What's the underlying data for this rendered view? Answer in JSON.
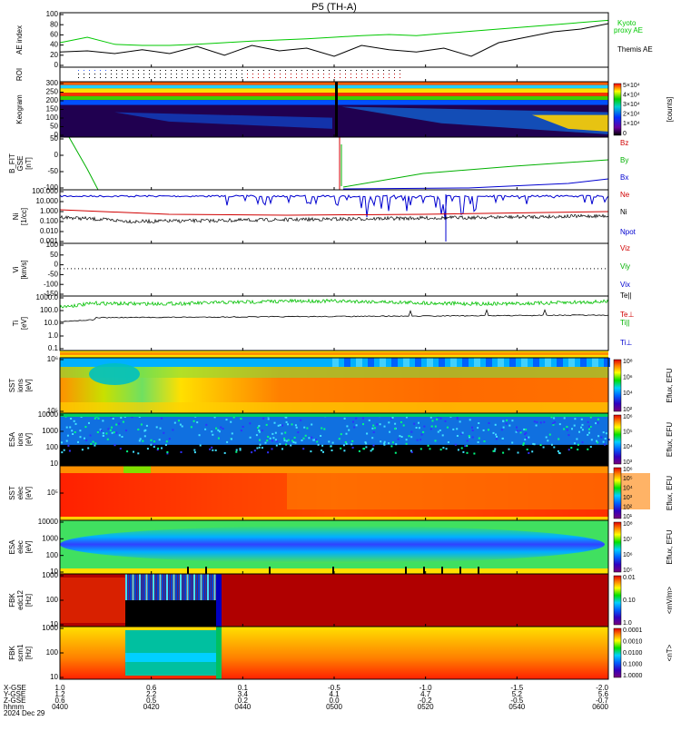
{
  "title": "P5 (TH-A)",
  "chart_data": [
    {
      "type": "line",
      "panel": "AE index",
      "ylabel": "AE index",
      "ylim": [
        0,
        100
      ],
      "yticks": [
        "0",
        "20",
        "40",
        "60",
        "80",
        "100"
      ],
      "x": [
        0.0,
        0.05,
        0.1,
        0.15,
        0.2,
        0.25,
        0.3,
        0.35,
        0.4,
        0.45,
        0.5,
        0.55,
        0.6,
        0.65,
        0.7,
        0.75,
        0.8,
        0.85,
        0.9,
        0.95,
        1.0
      ],
      "series": [
        {
          "name": "Kyoto\nproxy AE",
          "color": "#00c800",
          "values": [
            45,
            55,
            42,
            40,
            40,
            42,
            45,
            48,
            50,
            52,
            55,
            58,
            60,
            58,
            62,
            66,
            70,
            74,
            78,
            82,
            86
          ]
        },
        {
          "name": "Themis AE",
          "color": "#000000",
          "values": [
            28,
            30,
            25,
            32,
            25,
            38,
            22,
            40,
            30,
            35,
            20,
            40,
            32,
            28,
            35,
            20,
            45,
            55,
            65,
            70,
            80
          ]
        }
      ]
    },
    {
      "type": "heatmap",
      "panel": "ROI",
      "ylabel": "ROI"
    },
    {
      "type": "heatmap",
      "panel": "Keogram",
      "ylabel": "Keogram",
      "yticks": [
        "0",
        "50",
        "100",
        "150",
        "200",
        "250",
        "300"
      ],
      "colorbar": {
        "label": "[counts]",
        "ticks": [
          "0",
          "1×10⁴",
          "2×10⁴",
          "3×10⁴",
          "4×10⁴",
          "5×10⁴"
        ]
      }
    },
    {
      "type": "line",
      "panel": "B FIT",
      "ylabel": "B_FIT\nGSE\n[nT]",
      "ylim": [
        -100,
        100
      ],
      "yticks": [
        "-100",
        "-50",
        "0",
        "50"
      ],
      "series": [
        {
          "name": "Bz",
          "color": "#d00000"
        },
        {
          "name": "By",
          "color": "#00b000"
        },
        {
          "name": "Bx",
          "color": "#0000d0"
        }
      ]
    },
    {
      "type": "line",
      "panel": "Ni",
      "ylabel": "Ni\n[1/cc]",
      "yticks": [
        "0.001",
        "0.010",
        "0.100",
        "1.000",
        "10.000",
        "100.000"
      ],
      "series": [
        {
          "name": "Ne",
          "color": "#d00000"
        },
        {
          "name": "Ni",
          "color": "#000000"
        },
        {
          "name": "Npot",
          "color": "#0000d0"
        }
      ]
    },
    {
      "type": "line",
      "panel": "Vi",
      "ylabel": "Vi\n[km/s]",
      "yticks": [
        "-150",
        "-100",
        "-50",
        "0",
        "50",
        "100"
      ],
      "series": [
        {
          "name": "Viz",
          "color": "#d00000"
        },
        {
          "name": "Viy",
          "color": "#00b000"
        },
        {
          "name": "Vix",
          "color": "#0000d0"
        }
      ]
    },
    {
      "type": "line",
      "panel": "Ti",
      "ylabel": "Ti\n[eV]",
      "yticks": [
        "0.1",
        "1.0",
        "10.0",
        "100.0",
        "1000.0"
      ],
      "series": [
        {
          "name": "Te||",
          "color": "#000000"
        },
        {
          "name": "Te⊥",
          "color": "#d00000"
        },
        {
          "name": "Ti||",
          "color": "#00b000"
        },
        {
          "name": "Ti⊥",
          "color": "#0000d0"
        }
      ]
    },
    {
      "type": "heatmap",
      "panel": "SST ions",
      "ylabel": "SST\nions\n[eV]",
      "yticks": [
        "10⁵",
        "10⁶"
      ],
      "colorbar": {
        "label": "Eflux, EFU",
        "ticks": [
          "10²",
          "10⁴",
          "10⁶",
          "10⁸"
        ]
      }
    },
    {
      "type": "heatmap",
      "panel": "ESA ions",
      "ylabel": "ESA\nions\n[eV]",
      "yticks": [
        "10",
        "100",
        "1000",
        "10000"
      ],
      "colorbar": {
        "label": "Eflux, EFU",
        "ticks": [
          "10³",
          "10⁴",
          "10⁵",
          "10⁶"
        ]
      }
    },
    {
      "type": "heatmap",
      "panel": "SST elec",
      "ylabel": "SST\nelec\n[eV]",
      "yticks": [
        "10⁵"
      ],
      "colorbar": {
        "label": "Eflux, EFU",
        "ticks": [
          "10¹",
          "10²",
          "10³",
          "10⁴",
          "10⁵",
          "10⁶"
        ]
      }
    },
    {
      "type": "heatmap",
      "panel": "ESA elec",
      "ylabel": "ESA\nelec\n[eV]",
      "yticks": [
        "10",
        "100",
        "1000",
        "10000"
      ],
      "colorbar": {
        "label": "Eflux, EFU",
        "ticks": [
          "10⁵",
          "10⁶",
          "10⁷",
          "10⁸"
        ]
      }
    },
    {
      "type": "heatmap",
      "panel": "FBK E",
      "ylabel": "FBK\nedc12\n[Hz]",
      "yticks": [
        "10",
        "100",
        "1000"
      ],
      "colorbar": {
        "label": "<mV/m>",
        "ticks": [
          "1.0",
          "0.10",
          "0.01"
        ]
      }
    },
    {
      "type": "heatmap",
      "panel": "FBK B",
      "ylabel": "FBK\nscm1\n[Hz]",
      "yticks": [
        "10",
        "100",
        "1000"
      ],
      "colorbar": {
        "label": "<nT>",
        "ticks": [
          "1.0000",
          "0.1000",
          "0.0100",
          "0.0010",
          "0.0001"
        ]
      }
    }
  ],
  "legend": {
    "ae_kyoto": "Kyoto\nproxy AE",
    "ae_themis": "Themis AE",
    "bz": "Bz",
    "by": "By",
    "bx": "Bx",
    "ne": "Ne",
    "ni": "Ni",
    "npot": "Npot",
    "viz": "Viz",
    "viy": "Viy",
    "vix": "Vix",
    "te_par": "Te||",
    "te_perp": "Te⊥",
    "ti_par": "Ti||",
    "ti_perp": "Ti⊥"
  },
  "xaxis": {
    "row_labels": [
      "X-GSE",
      "Y-GSE",
      "Z-GSE",
      "hhmm",
      "2024 Dec 29"
    ],
    "x_gse": [
      "1.0",
      "0.6",
      "0.1",
      "-0.5",
      "-1.0",
      "-1.5",
      "-2.0"
    ],
    "y_gse": [
      "1.2",
      "2.2",
      "3.4",
      "4.1",
      "4.7",
      "5.2",
      "5.6"
    ],
    "z_gse": [
      "0.6",
      "0.5",
      "0.2",
      "0.0",
      "-0.2",
      "-0.5",
      "-0.7"
    ],
    "hhmm": [
      "0400",
      "0420",
      "0440",
      "0500",
      "0520",
      "0540",
      "0600"
    ]
  },
  "colors": {
    "kyoto": "#00c800",
    "themis": "#000000",
    "red": "#d00000",
    "green": "#00b000",
    "blue": "#0000d0"
  }
}
